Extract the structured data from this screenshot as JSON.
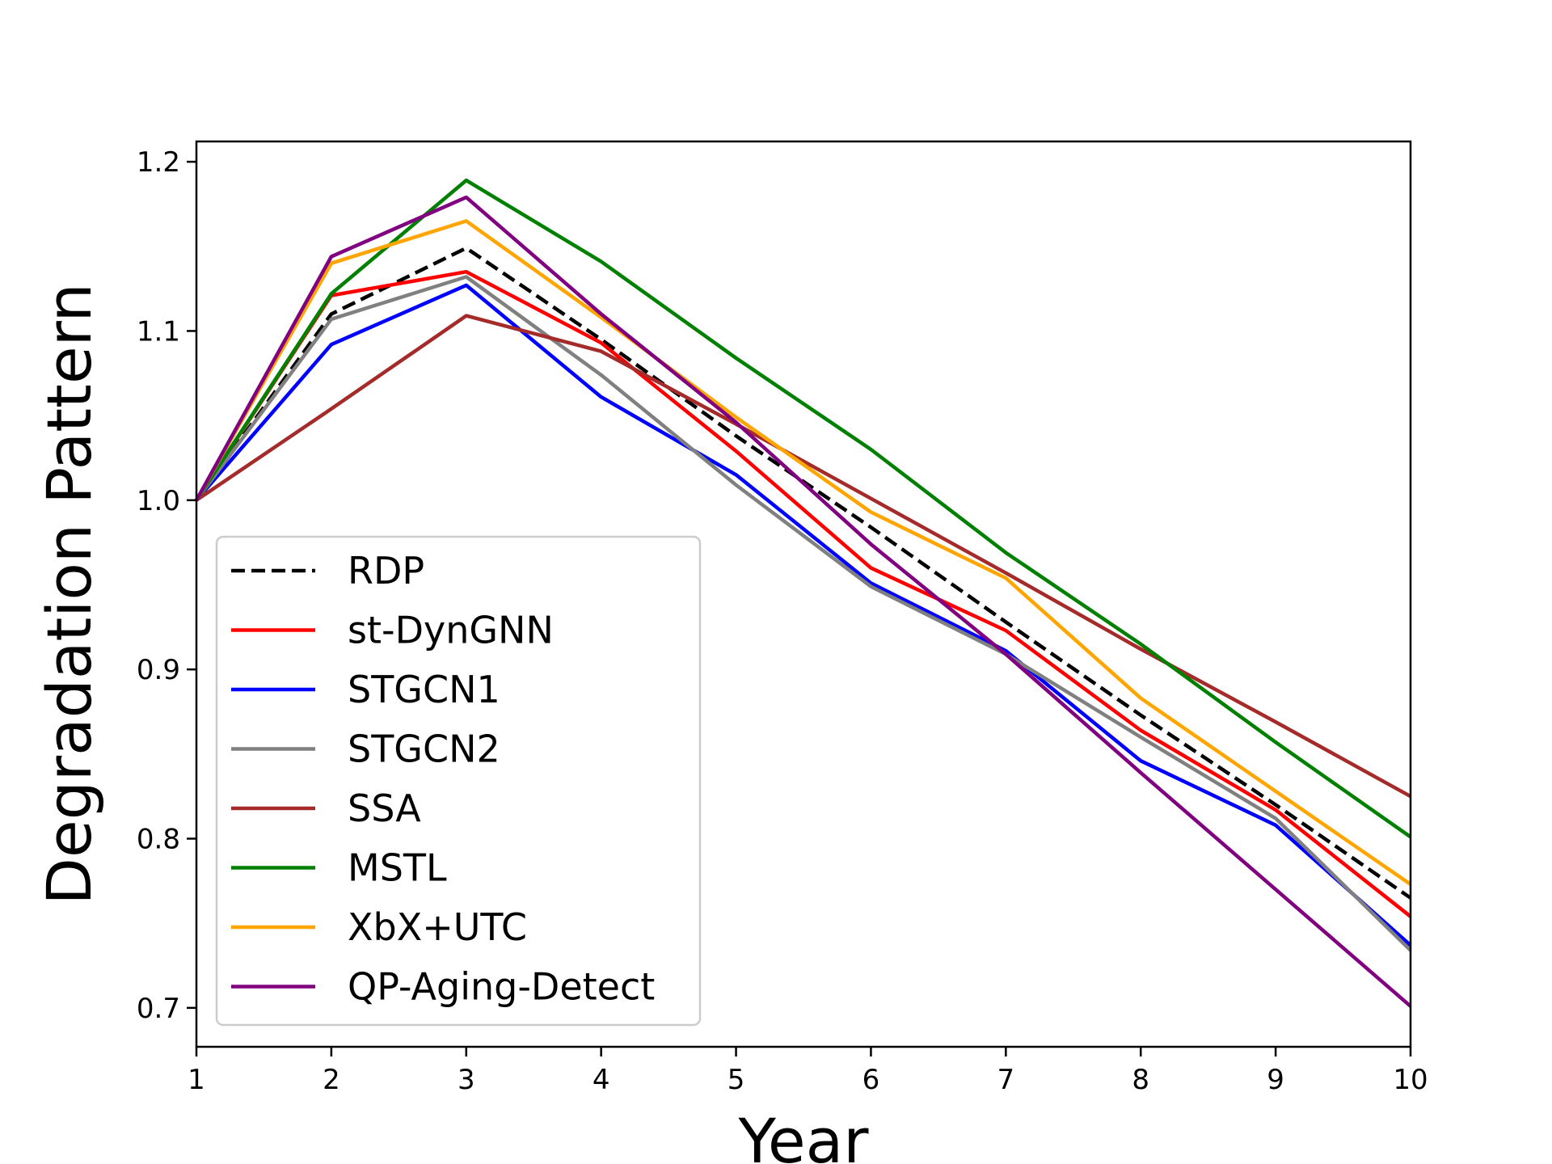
{
  "chart_data": {
    "type": "line",
    "title": "",
    "xlabel": "Year",
    "ylabel": "Degradation Pattern",
    "xlim": [
      1,
      10
    ],
    "ylim": [
      0.677,
      1.212
    ],
    "xticks": [
      "1",
      "2",
      "3",
      "4",
      "5",
      "6",
      "7",
      "8",
      "9",
      "10"
    ],
    "yticks": [
      "0.7",
      "0.8",
      "0.9",
      "1.0",
      "1.1",
      "1.2"
    ],
    "grid": false,
    "legend_position": "lower-left",
    "x": [
      1,
      2,
      3,
      4,
      5,
      6,
      7,
      8,
      9,
      10
    ],
    "series": [
      {
        "name": "RDP",
        "color": "#000000",
        "dashed": true,
        "values": [
          1.0,
          1.11,
          1.149,
          1.095,
          1.038,
          0.984,
          0.928,
          0.873,
          0.82,
          0.765
        ]
      },
      {
        "name": "st-DynGNN",
        "color": "#ff0000",
        "dashed": false,
        "values": [
          1.0,
          1.121,
          1.135,
          1.093,
          1.029,
          0.96,
          0.923,
          0.864,
          0.817,
          0.754
        ]
      },
      {
        "name": "STGCN1",
        "color": "#0000ff",
        "dashed": false,
        "values": [
          1.0,
          1.092,
          1.127,
          1.061,
          1.015,
          0.951,
          0.911,
          0.846,
          0.808,
          0.737
        ]
      },
      {
        "name": "STGCN2",
        "color": "#808080",
        "dashed": false,
        "values": [
          1.0,
          1.107,
          1.132,
          1.074,
          1.009,
          0.949,
          0.909,
          0.86,
          0.812,
          0.734
        ]
      },
      {
        "name": "SSA",
        "color": "#a52a2a",
        "dashed": false,
        "values": [
          1.0,
          1.054,
          1.109,
          1.088,
          1.045,
          1.001,
          0.957,
          0.912,
          0.869,
          0.825
        ]
      },
      {
        "name": "MSTL",
        "color": "#008000",
        "dashed": false,
        "values": [
          1.0,
          1.122,
          1.189,
          1.141,
          1.084,
          1.03,
          0.969,
          0.915,
          0.857,
          0.801
        ]
      },
      {
        "name": "XbX+UTC",
        "color": "#ffa500",
        "dashed": false,
        "values": [
          1.0,
          1.14,
          1.165,
          1.108,
          1.049,
          0.993,
          0.954,
          0.883,
          0.828,
          0.773
        ]
      },
      {
        "name": "QP-Aging-Detect",
        "color": "#800080",
        "dashed": false,
        "values": [
          1.0,
          1.144,
          1.179,
          1.11,
          1.046,
          0.974,
          0.909,
          0.839,
          0.77,
          0.701
        ]
      }
    ]
  }
}
